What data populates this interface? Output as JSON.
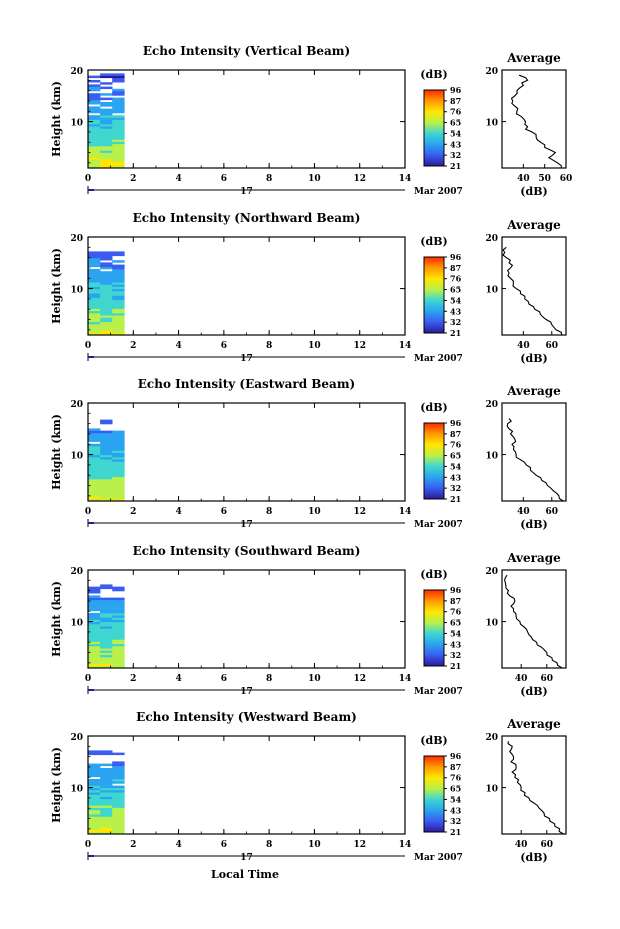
{
  "figure": {
    "xlabel": "Local Time",
    "date_label": "Mar 2007",
    "day_label": "17"
  },
  "colorbar": {
    "unit_label": "(dB)",
    "tick_labels": [
      "96",
      "87",
      "76",
      "65",
      "54",
      "43",
      "32",
      "21"
    ],
    "colors": [
      "#ff2a00",
      "#ff9a00",
      "#ffe600",
      "#b9f04a",
      "#3fd6cf",
      "#2aa4f0",
      "#3a5cf0",
      "#2a1a9a"
    ]
  },
  "chart_data": [
    {
      "type": "heatmap",
      "title": "Echo Intensity (Vertical Beam)",
      "ylabel": "Height (km)",
      "xlim": [
        0,
        14
      ],
      "ylim": [
        1,
        20
      ],
      "xticks": [
        0,
        2,
        4,
        6,
        8,
        10,
        12,
        14
      ],
      "yticks": [
        10,
        20
      ],
      "data_time_range": [
        0,
        1.6
      ],
      "profile": {
        "title": "Average",
        "xlabel": "(dB)",
        "xlim": [
          30,
          60
        ],
        "xticks": [
          40,
          50,
          60
        ],
        "ylim": [
          1,
          20
        ],
        "yticks": [
          10,
          20
        ],
        "height_km": [
          1,
          2,
          3,
          4,
          5,
          6,
          7,
          8,
          9,
          10,
          11,
          12,
          13,
          14,
          15,
          16,
          17,
          18,
          19
        ],
        "mean_db": [
          58,
          56,
          52,
          55,
          50,
          48,
          46,
          44,
          42,
          41,
          39,
          37,
          36,
          35,
          36,
          37,
          40,
          42,
          38
        ]
      }
    },
    {
      "type": "heatmap",
      "title": "Echo Intensity (Northward Beam)",
      "ylabel": "Height (km)",
      "xlim": [
        0,
        14
      ],
      "ylim": [
        1,
        20
      ],
      "xticks": [
        0,
        2,
        4,
        6,
        8,
        10,
        12,
        14
      ],
      "yticks": [
        10,
        20
      ],
      "data_time_range": [
        0,
        1.6
      ],
      "profile": {
        "title": "Average",
        "xlabel": "(dB)",
        "xlim": [
          25,
          70
        ],
        "xticks": [
          40,
          60
        ],
        "ylim": [
          1,
          20
        ],
        "yticks": [
          10,
          20
        ],
        "height_km": [
          1,
          2,
          3,
          4,
          5,
          6,
          7,
          8,
          9,
          10,
          11,
          12,
          13,
          14,
          15,
          16,
          17,
          18
        ],
        "mean_db": [
          67,
          63,
          60,
          56,
          52,
          48,
          44,
          41,
          38,
          35,
          33,
          31,
          30,
          31,
          30,
          28,
          27,
          28
        ]
      }
    },
    {
      "type": "heatmap",
      "title": "Echo Intensity (Eastward Beam)",
      "ylabel": "Height (km)",
      "xlim": [
        0,
        14
      ],
      "ylim": [
        1,
        20
      ],
      "xticks": [
        0,
        2,
        4,
        6,
        8,
        10,
        12,
        14
      ],
      "yticks": [
        10,
        20
      ],
      "data_time_range": [
        0,
        1.6
      ],
      "profile": {
        "title": "Average",
        "xlabel": "(dB)",
        "xlim": [
          25,
          70
        ],
        "xticks": [
          40,
          60
        ],
        "ylim": [
          1,
          20
        ],
        "yticks": [
          10,
          20
        ],
        "height_km": [
          1,
          2,
          3,
          4,
          5,
          6,
          7,
          8,
          9,
          10,
          11,
          12,
          13,
          14,
          15,
          16,
          17
        ],
        "mean_db": [
          68,
          65,
          61,
          57,
          53,
          49,
          45,
          42,
          38,
          35,
          33,
          32,
          34,
          31,
          30,
          29,
          30
        ]
      }
    },
    {
      "type": "heatmap",
      "title": "Echo Intensity (Southward Beam)",
      "ylabel": "Height (km)",
      "xlim": [
        0,
        14
      ],
      "ylim": [
        1,
        20
      ],
      "xticks": [
        0,
        2,
        4,
        6,
        8,
        10,
        12,
        14
      ],
      "yticks": [
        10,
        20
      ],
      "data_time_range": [
        0,
        1.6
      ],
      "profile": {
        "title": "Average",
        "xlabel": "(dB)",
        "xlim": [
          25,
          75
        ],
        "xticks": [
          40,
          60
        ],
        "ylim": [
          1,
          20
        ],
        "yticks": [
          10,
          20
        ],
        "height_km": [
          1,
          2,
          3,
          4,
          5,
          6,
          7,
          8,
          9,
          10,
          11,
          12,
          13,
          14,
          15,
          16,
          17,
          18,
          19
        ],
        "mean_db": [
          72,
          68,
          64,
          60,
          56,
          52,
          48,
          45,
          42,
          39,
          36,
          34,
          32,
          35,
          31,
          30,
          28,
          27,
          29
        ]
      }
    },
    {
      "type": "heatmap",
      "title": "Echo Intensity (Westward Beam)",
      "ylabel": "Height (km)",
      "xlim": [
        0,
        14
      ],
      "ylim": [
        1,
        20
      ],
      "xticks": [
        0,
        2,
        4,
        6,
        8,
        10,
        12,
        14
      ],
      "yticks": [
        10,
        20
      ],
      "data_time_range": [
        0,
        1.6
      ],
      "profile": {
        "title": "Average",
        "xlabel": "(dB)",
        "xlim": [
          25,
          75
        ],
        "xticks": [
          40,
          60
        ],
        "ylim": [
          1,
          20
        ],
        "yticks": [
          10,
          20
        ],
        "height_km": [
          1,
          2,
          3,
          4,
          5,
          6,
          7,
          8,
          9,
          10,
          11,
          12,
          13,
          14,
          15,
          16,
          17,
          18,
          19
        ],
        "mean_db": [
          73,
          70,
          66,
          62,
          58,
          54,
          50,
          46,
          43,
          40,
          37,
          35,
          33,
          36,
          32,
          34,
          31,
          33,
          30
        ]
      }
    }
  ]
}
